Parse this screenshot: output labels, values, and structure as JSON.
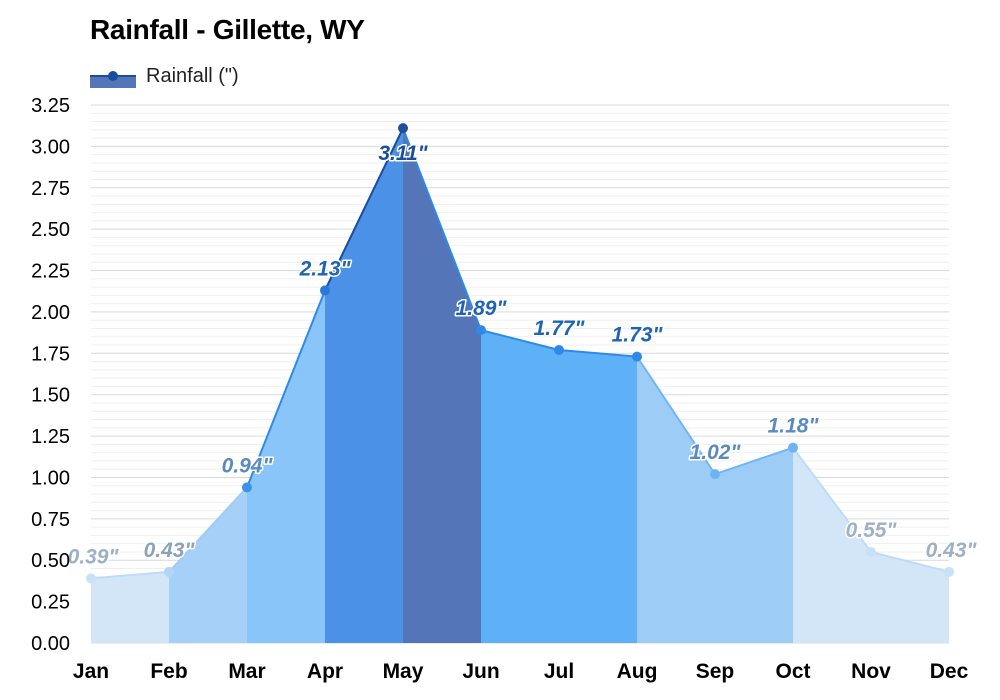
{
  "title": "Rainfall - Gillette, WY",
  "legend": {
    "label": "Rainfall (\")",
    "color": "#1a4d9c"
  },
  "chart_data": {
    "type": "area",
    "title": "Rainfall - Gillette, WY",
    "xlabel": "",
    "ylabel": "",
    "categories": [
      "Jan",
      "Feb",
      "Mar",
      "Apr",
      "May",
      "Jun",
      "Jul",
      "Aug",
      "Sep",
      "Oct",
      "Nov",
      "Dec"
    ],
    "series": [
      {
        "name": "Rainfall (\")",
        "values": [
          0.39,
          0.43,
          0.94,
          2.13,
          3.11,
          1.89,
          1.77,
          1.73,
          1.02,
          1.18,
          0.55,
          0.43
        ],
        "labels": [
          "0.39\"",
          "0.43\"",
          "0.94\"",
          "2.13\"",
          "3.11\"",
          "1.89\"",
          "1.77\"",
          "1.73\"",
          "1.02\"",
          "1.18\"",
          "0.55\"",
          "0.43\""
        ]
      }
    ],
    "ylim": [
      0,
      3.25
    ],
    "yticks": [
      "0.00",
      "0.25",
      "0.50",
      "0.75",
      "1.00",
      "1.25",
      "1.50",
      "1.75",
      "2.00",
      "2.25",
      "2.50",
      "2.75",
      "3.00",
      "3.25"
    ],
    "grid": true,
    "legend_position": "top-left",
    "band_colors": [
      "#d3e6f8",
      "#a6d0f8",
      "#8ac5f9",
      "#4b91e8",
      "#5475b7",
      "#5eb1f6",
      "#5eb1f6",
      "#9dcdf7",
      "#9dcdf7",
      "#d3e6f8",
      "#d3e6f8"
    ],
    "line_colors": [
      "#bcdcf7",
      "#9fcbf5",
      "#2e8ae6",
      "#1a4d9c",
      "#2e8ae6",
      "#2e8ae6",
      "#2e8ae6",
      "#70b6f4",
      "#70b6f4",
      "#bcdcf7",
      "#bcdcf7"
    ],
    "point_colors": [
      "#c8e1f6",
      "#b3d5f5",
      "#3c92e8",
      "#2a78d8",
      "#1f4f9e",
      "#2e8ae6",
      "#2e8ae6",
      "#2e8ae6",
      "#6fb4f2",
      "#6fb4f2",
      "#c8e1f6",
      "#c8e1f6"
    ],
    "label_colors": [
      "#9db0c4",
      "#8aa3bc",
      "#5a8ac0",
      "#1e63b6",
      "#1a4d9c",
      "#1e63b6",
      "#1e63b6",
      "#1e63b6",
      "#5a8ac0",
      "#5a8ac0",
      "#9db0c4",
      "#9db0c4"
    ]
  }
}
